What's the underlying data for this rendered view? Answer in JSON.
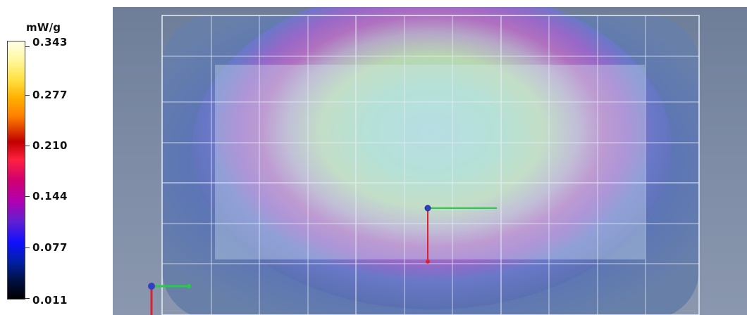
{
  "legend": {
    "unit": "mW/g",
    "ticks": [
      "0.343",
      "0.277",
      "0.210",
      "0.144",
      "0.077",
      "0.011"
    ],
    "range": {
      "max": 0.343,
      "min": 0.011
    },
    "colors": {
      "top": "#ffffe6",
      "orange": "#ff8000",
      "red": "#c00000",
      "magenta": "#d00070",
      "purple": "#b000b0",
      "blue": "#1010ff",
      "bottom": "#000000"
    }
  },
  "view": {
    "background": "#7e8ca6",
    "phantom_fill": "#5f78b8",
    "hot_center": "#a8d8d8",
    "grid_color": "#e8eef8",
    "x_axis_color": "#20d040",
    "y_axis_color": "#e02030",
    "origin_color": "#3040c0"
  },
  "icons": {
    "coordinate_triad": "axes-triad-icon",
    "probe_marker": "probe-axes-icon"
  }
}
